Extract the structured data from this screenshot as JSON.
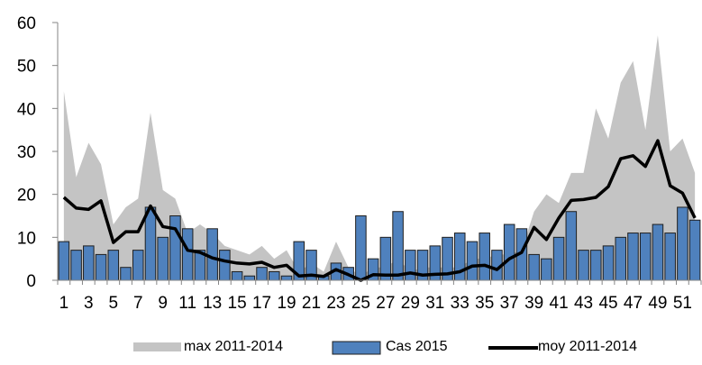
{
  "chart_data": {
    "type": "bar",
    "x": [
      1,
      2,
      3,
      4,
      5,
      6,
      7,
      8,
      9,
      10,
      11,
      12,
      13,
      14,
      15,
      16,
      17,
      18,
      19,
      20,
      21,
      22,
      23,
      24,
      25,
      26,
      27,
      28,
      29,
      30,
      31,
      32,
      33,
      34,
      35,
      36,
      37,
      38,
      39,
      40,
      41,
      42,
      43,
      44,
      45,
      46,
      47,
      48,
      49,
      50,
      51,
      52
    ],
    "x_tick_labels": [
      "1",
      "3",
      "5",
      "7",
      "9",
      "11",
      "13",
      "15",
      "17",
      "19",
      "21",
      "23",
      "25",
      "27",
      "29",
      "31",
      "33",
      "35",
      "37",
      "39",
      "41",
      "43",
      "45",
      "47",
      "49",
      "51"
    ],
    "y_tick_labels": [
      "0",
      "10",
      "20",
      "30",
      "40",
      "50",
      "60"
    ],
    "ylim": [
      0,
      60
    ],
    "title": "",
    "xlabel": "",
    "ylabel": "",
    "legend_position": "bottom",
    "series": [
      {
        "name": "max 2011-2014",
        "kind": "area",
        "color": "#c4c4c4",
        "values": [
          44,
          24,
          32,
          27,
          13,
          17,
          19,
          39,
          21,
          19,
          11,
          13,
          11,
          8,
          7,
          6,
          8,
          5,
          7,
          2,
          4,
          2,
          9,
          3,
          1,
          3,
          3,
          5,
          2,
          3,
          3,
          3,
          3,
          5,
          5,
          6,
          6,
          7,
          16,
          20,
          18,
          25,
          25,
          40,
          33,
          46,
          51,
          35,
          57,
          30,
          33,
          25
        ]
      },
      {
        "name": "Cas 2015",
        "kind": "bar",
        "color": "#4f81bd",
        "values": [
          9,
          7,
          8,
          6,
          7,
          3,
          7,
          17,
          10,
          15,
          12,
          7,
          12,
          7,
          2,
          1,
          3,
          2,
          1,
          9,
          7,
          1,
          4,
          3,
          15,
          5,
          10,
          16,
          7,
          7,
          8,
          10,
          11,
          9,
          11,
          7,
          13,
          12,
          6,
          5,
          10,
          16,
          7,
          7,
          8,
          10,
          11,
          11,
          13,
          11,
          17,
          14
        ]
      },
      {
        "name": "moy 2011-2014",
        "kind": "line",
        "color": "#000000",
        "values": [
          19.3,
          16.8,
          16.5,
          18.5,
          8.8,
          11.3,
          11.3,
          17.3,
          12.5,
          12,
          7,
          6.5,
          5.2,
          4.5,
          4,
          3.8,
          4.2,
          3,
          3.5,
          1,
          1.2,
          0.9,
          2.5,
          1.3,
          0,
          1.3,
          1.2,
          1.2,
          1.7,
          1.2,
          1.4,
          1.5,
          2,
          3.3,
          3.5,
          2.5,
          5,
          6.5,
          12.3,
          9.5,
          14.5,
          18.6,
          18.8,
          19.3,
          21.8,
          28.3,
          29,
          26.5,
          32.5,
          22,
          20.3,
          14.5
        ]
      }
    ]
  }
}
